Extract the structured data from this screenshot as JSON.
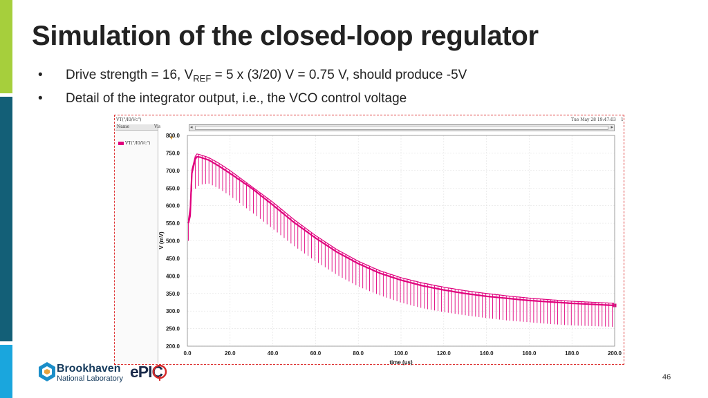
{
  "slide": {
    "title": "Simulation of the closed-loop regulator",
    "bullet_marker": "•",
    "bullet1_pre": "Drive strength = 16, V",
    "bullet1_sub": "REF",
    "bullet1_post": " = 5 x (3/20) V = 0.75 V, should produce -5V",
    "bullet2": "Detail of the integrator output, i.e., the VCO control voltage",
    "page_number": "46"
  },
  "sim_window": {
    "signal_header": "VT(\"/I0/Vc\")",
    "timestamp": "Tue May 28 19:47:03",
    "corner_label": "1",
    "name_col": "Name",
    "vis_col": "Vis",
    "legend_entry": "VT(\"/I0/Vc\")"
  },
  "logos": {
    "brookhaven_line1": "Brookhaven",
    "brookhaven_line2": "National Laboratory",
    "epic": "ePIC"
  },
  "colors": {
    "trace": "#e0007d",
    "accent_green": "#a6cf3c",
    "accent_teal": "#135f77",
    "accent_cyan": "#1aa6dd"
  },
  "chart_data": {
    "type": "line",
    "title": "",
    "xlabel": "time (us)",
    "ylabel": "V (mV)",
    "xlim": [
      0,
      200
    ],
    "ylim": [
      200,
      800
    ],
    "x_ticks": [
      "0.0",
      "20.0",
      "40.0",
      "60.0",
      "80.0",
      "100.0",
      "120.0",
      "140.0",
      "160.0",
      "180.0",
      "200.0"
    ],
    "y_ticks": [
      "200.0",
      "250.0",
      "300.0",
      "350.0",
      "400.0",
      "450.0",
      "500.0",
      "550.0",
      "600.0",
      "650.0",
      "700.0",
      "750.0",
      "800.0"
    ],
    "grid": true,
    "series": [
      {
        "name": "VT(\"/I0/Vc\")",
        "description": "ripple envelope",
        "x": [
          0.5,
          1,
          2,
          4,
          6,
          10,
          15,
          20,
          30,
          40,
          50,
          60,
          70,
          80,
          90,
          100,
          110,
          120,
          130,
          140,
          150,
          160,
          170,
          180,
          190,
          200
        ],
        "upper": [
          560,
          550,
          700,
          748,
          745,
          737,
          720,
          700,
          655,
          610,
          560,
          515,
          475,
          442,
          415,
          395,
          380,
          368,
          358,
          350,
          343,
          337,
          332,
          328,
          325,
          322
        ],
        "mean": [
          550,
          520,
          690,
          740,
          738,
          730,
          712,
          692,
          650,
          602,
          552,
          508,
          468,
          435,
          408,
          388,
          372,
          360,
          350,
          342,
          336,
          330,
          326,
          322,
          319,
          316
        ],
        "lower": [
          500,
          490,
          640,
          650,
          660,
          663,
          648,
          628,
          582,
          534,
          485,
          442,
          403,
          370,
          345,
          324,
          308,
          297,
          288,
          280,
          273,
          268,
          263,
          259,
          257,
          255
        ]
      }
    ]
  }
}
